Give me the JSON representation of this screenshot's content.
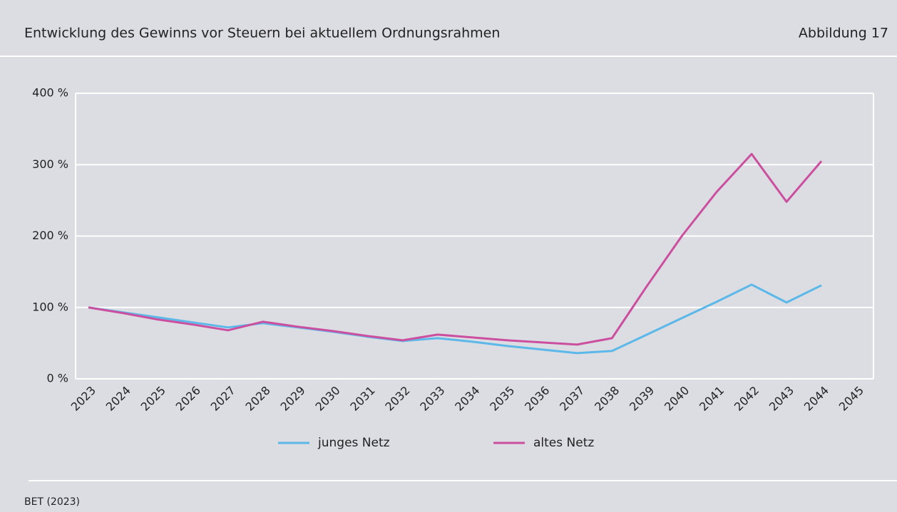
{
  "chart_data": {
    "type": "line",
    "title": "Entwicklung des Gewinns vor Steuern bei aktuellem Ordnungsrahmen",
    "figure_label": "Abbildung 17",
    "source": "BET (2023)",
    "categories": [
      "2023",
      "2024",
      "2025",
      "2026",
      "2027",
      "2028",
      "2029",
      "2030",
      "2031",
      "2032",
      "2033",
      "2034",
      "2035",
      "2036",
      "2037",
      "2038",
      "2039",
      "2040",
      "2041",
      "2042",
      "2043",
      "2044",
      "2045"
    ],
    "series": [
      {
        "name": "junges Netz",
        "color": "#5bb8e8",
        "values": [
          100,
          93,
          86,
          79,
          72,
          78,
          72,
          66,
          59,
          53,
          57,
          52,
          46,
          41,
          36,
          39,
          62,
          85,
          108,
          132,
          107,
          131,
          null
        ]
      },
      {
        "name": "altes Netz",
        "color": "#cc4f9f",
        "values": [
          100,
          92,
          83,
          76,
          68,
          80,
          73,
          67,
          60,
          54,
          62,
          58,
          54,
          51,
          48,
          57,
          130,
          200,
          262,
          315,
          248,
          305,
          null
        ]
      }
    ],
    "ylim": [
      0,
      400
    ],
    "yticks": [
      {
        "value": 0,
        "label": "0 %"
      },
      {
        "value": 100,
        "label": "100 %"
      },
      {
        "value": 200,
        "label": "200 %"
      },
      {
        "value": 300,
        "label": "300 %"
      },
      {
        "value": 400,
        "label": "400 %"
      }
    ],
    "grid": true
  }
}
